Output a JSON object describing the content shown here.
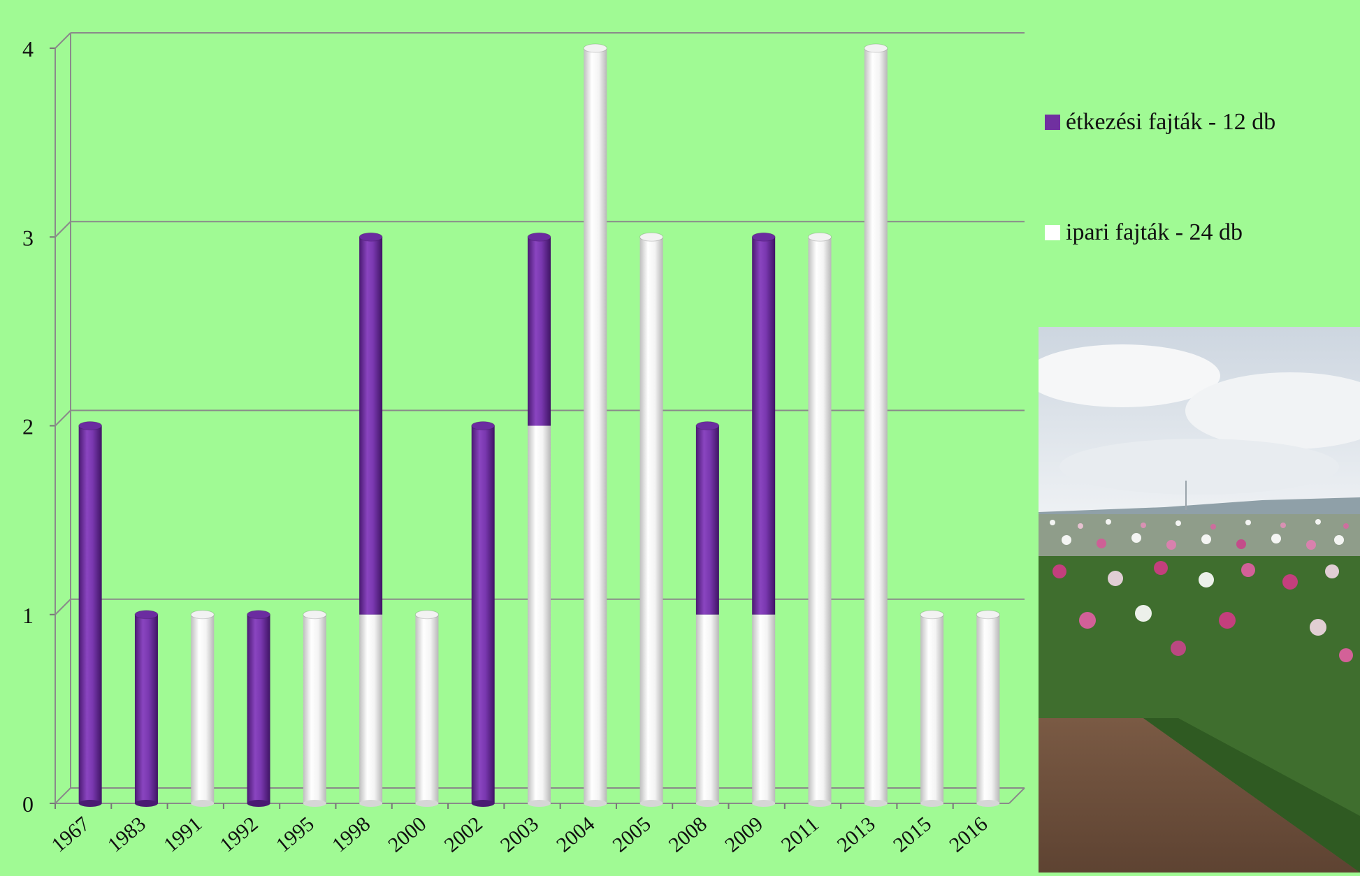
{
  "chart_data": {
    "type": "bar",
    "stacked": true,
    "categories": [
      "1967",
      "1983",
      "1991",
      "1992",
      "1995",
      "1998",
      "2000",
      "2002",
      "2003",
      "2004",
      "2005",
      "2008",
      "2009",
      "2011",
      "2013",
      "2015",
      "2016"
    ],
    "series": [
      {
        "name": "ipari fajták - 24 db",
        "color": "#ffffff",
        "values": [
          0,
          0,
          1,
          0,
          1,
          1,
          1,
          0,
          2,
          4,
          3,
          1,
          1,
          3,
          4,
          1,
          1
        ]
      },
      {
        "name": "étkezési fajták - 12 db",
        "color": "#7030a0",
        "values": [
          2,
          1,
          0,
          1,
          0,
          2,
          0,
          2,
          1,
          0,
          0,
          1,
          2,
          0,
          0,
          0,
          0
        ]
      }
    ],
    "ylim": [
      0,
      4
    ],
    "yticks": [
      "0",
      "1",
      "2",
      "3",
      "4"
    ],
    "grid": true,
    "legend_position": "right",
    "title": "",
    "xlabel": "",
    "ylabel": ""
  },
  "legend": {
    "items": [
      {
        "label": "étkezési fajták - 12 db",
        "color": "#7030a0"
      },
      {
        "label": "ipari fajták - 24 db",
        "color": "#ffffff"
      }
    ]
  },
  "photo": {
    "subject": "poppy-field-photo"
  }
}
